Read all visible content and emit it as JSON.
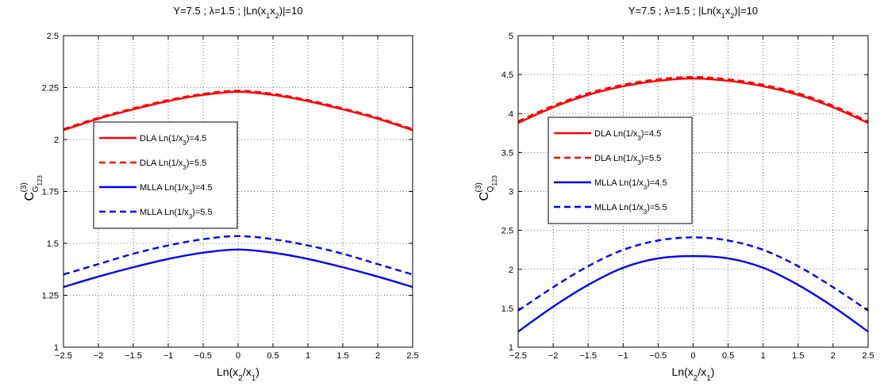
{
  "chart_data": [
    {
      "type": "line",
      "title": "Y=7.5 ; λ=1.5 ; |Ln(x1x2)|=10",
      "xlabel": "Ln(x2/x1)",
      "ylabel": "C(3) G123",
      "xlim": [
        -2.5,
        2.5
      ],
      "ylim": [
        1,
        2.5
      ],
      "xticks": [
        "−2.5",
        "−2",
        "−1.5",
        "−1",
        "−0.5",
        "0",
        "0.5",
        "1",
        "1.5",
        "2",
        "2.5"
      ],
      "yticks": [
        "1",
        "1.25",
        "1.5",
        "1.75",
        "2",
        "2.25",
        "2.5"
      ],
      "grid": true,
      "legend_position": "center-left",
      "x": [
        -2.5,
        -2.0,
        -1.5,
        -1.0,
        -0.5,
        0.0,
        0.5,
        1.0,
        1.5,
        2.0,
        2.5
      ],
      "series": [
        {
          "name": "DLA Ln(1/x3)=4.5",
          "color": "#ff0000",
          "dash": "solid",
          "values": [
            2.045,
            2.1,
            2.145,
            2.185,
            2.215,
            2.23,
            2.215,
            2.185,
            2.145,
            2.1,
            2.045
          ]
        },
        {
          "name": "DLA Ln(1/x3)=5.5",
          "color": "#ff0000",
          "dash": "dashed",
          "values": [
            2.05,
            2.105,
            2.15,
            2.19,
            2.22,
            2.235,
            2.22,
            2.19,
            2.15,
            2.105,
            2.05
          ]
        },
        {
          "name": "MLLA Ln(1/x3)=4.5",
          "color": "#0000ff",
          "dash": "solid",
          "values": [
            1.29,
            1.34,
            1.385,
            1.425,
            1.455,
            1.47,
            1.455,
            1.425,
            1.385,
            1.34,
            1.29
          ]
        },
        {
          "name": "MLLA Ln(1/x3)=5.5",
          "color": "#0000ff",
          "dash": "dashed",
          "values": [
            1.35,
            1.4,
            1.45,
            1.49,
            1.52,
            1.535,
            1.52,
            1.49,
            1.45,
            1.4,
            1.35
          ]
        }
      ]
    },
    {
      "type": "line",
      "title": "Y=7.5 ; λ=1.5 ; |Ln(x1x2)|=10",
      "xlabel": "Ln(x2/x1)",
      "ylabel": "C(3) Q123",
      "xlim": [
        -2.5,
        2.5
      ],
      "ylim": [
        1,
        5
      ],
      "xticks": [
        "−2.5",
        "−2",
        "−1.5",
        "−1",
        "−0.5",
        "0",
        "0.5",
        "1",
        "1.5",
        "2",
        "2.5"
      ],
      "yticks": [
        "1",
        "1.5",
        "2",
        "2.5",
        "3",
        "3.5",
        "4",
        "4.5",
        "5"
      ],
      "grid": true,
      "legend_position": "center-left",
      "x": [
        -2.5,
        -2.0,
        -1.5,
        -1.0,
        -0.5,
        0.0,
        0.5,
        1.0,
        1.5,
        2.0,
        2.5
      ],
      "series": [
        {
          "name": "DLA Ln(1/x3)=4.5",
          "color": "#ff0000",
          "dash": "solid",
          "values": [
            3.88,
            4.08,
            4.24,
            4.35,
            4.42,
            4.45,
            4.42,
            4.35,
            4.24,
            4.08,
            3.88
          ]
        },
        {
          "name": "DLA Ln(1/x3)=5.5",
          "color": "#ff0000",
          "dash": "dashed",
          "values": [
            3.9,
            4.1,
            4.26,
            4.37,
            4.44,
            4.47,
            4.44,
            4.37,
            4.26,
            4.1,
            3.9
          ]
        },
        {
          "name": "MLLA Ln(1/x3)=4.5",
          "color": "#0000ff",
          "dash": "solid",
          "values": [
            1.2,
            1.52,
            1.8,
            2.02,
            2.14,
            2.17,
            2.14,
            2.02,
            1.8,
            1.52,
            1.2
          ]
        },
        {
          "name": "MLLA Ln(1/x3)=5.5",
          "color": "#0000ff",
          "dash": "dashed",
          "values": [
            1.47,
            1.77,
            2.04,
            2.25,
            2.37,
            2.41,
            2.37,
            2.25,
            2.04,
            1.77,
            1.47
          ]
        }
      ]
    }
  ],
  "axis_text": {
    "title_main": "Y=7.5 ; λ=1.5 ; |Ln(x",
    "title_sub1": "1",
    "title_mid": "x",
    "title_sub2": "2",
    "title_end": ")|=10",
    "xlabel_main": "Ln(x",
    "xlabel_sub1": "2",
    "xlabel_mid": "/x",
    "xlabel_sub2": "1",
    "xlabel_end": ")",
    "ylabel_C": "C",
    "ylabel_sup": "(3)",
    "ylabel_left_sub": "G",
    "ylabel_right_sub": "Q",
    "ylabel_subsub": "123",
    "legend_parts": [
      {
        "prefix": "DLA Ln(1/x",
        "sub": "3",
        "suffix": ")=4.5"
      },
      {
        "prefix": "DLA Ln(1/x",
        "sub": "3",
        "suffix": ")=5.5"
      },
      {
        "prefix": "MLLA Ln(1/x",
        "sub": "3",
        "suffix": ")=4.5"
      },
      {
        "prefix": "MLLA Ln(1/x",
        "sub": "3",
        "suffix": ")=5.5"
      }
    ]
  }
}
